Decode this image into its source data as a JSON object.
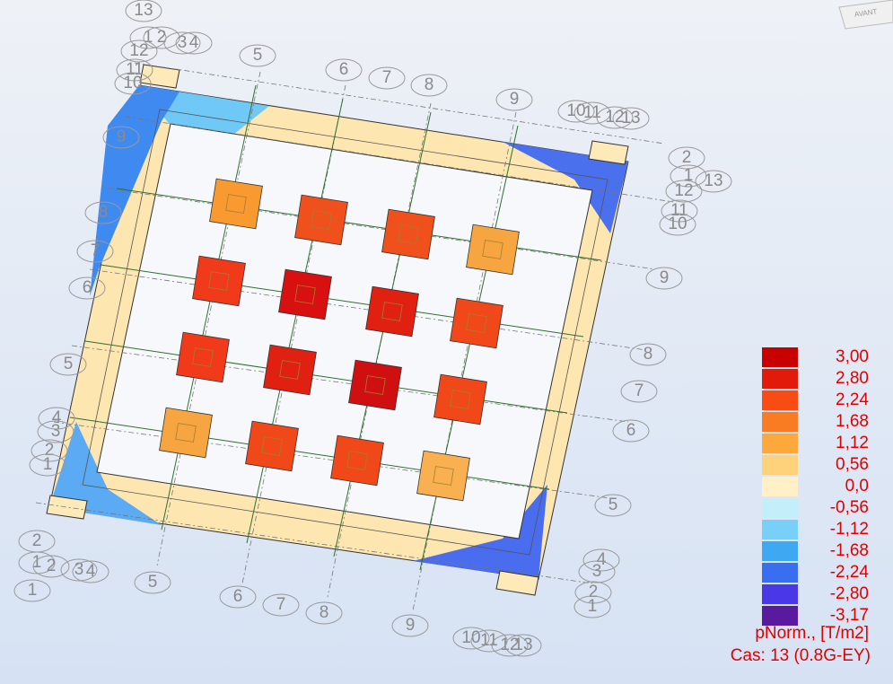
{
  "view_cube": {
    "label": "AVANT"
  },
  "legend": {
    "entries": [
      {
        "label": "3,00",
        "color": "#c80000"
      },
      {
        "label": "2,80",
        "color": "#e21a0a"
      },
      {
        "label": "2,24",
        "color": "#f84c14"
      },
      {
        "label": "1,68",
        "color": "#fa7c22"
      },
      {
        "label": "1,12",
        "color": "#fca83a"
      },
      {
        "label": "0,56",
        "color": "#fdd27a"
      },
      {
        "label": "0,0",
        "color": "#fff0c8"
      },
      {
        "label": "-0,56",
        "color": "#c4eefa"
      },
      {
        "label": "-1,12",
        "color": "#78d0f8"
      },
      {
        "label": "-1,68",
        "color": "#3ea8f2"
      },
      {
        "label": "-2,24",
        "color": "#3a6ef0"
      },
      {
        "label": "-2,80",
        "color": "#4a38e8"
      },
      {
        "label": "-3,17",
        "color": "#5a1aa0"
      }
    ],
    "quantity": "pNorm., [T/m2]",
    "case": "Cas: 13 (0.8G-EY)"
  },
  "axis_labels": [
    "13",
    "1",
    "2",
    "3",
    "4",
    "12",
    "11",
    "10",
    "9",
    "8",
    "7",
    "6",
    "5",
    "4",
    "3",
    "2",
    "1",
    "5",
    "6",
    "7",
    "8",
    "9",
    "10",
    "11",
    "12",
    "13",
    "2",
    "1",
    "13",
    "12",
    "11",
    "10",
    "9",
    "8",
    "7",
    "6",
    "5",
    "4",
    "3",
    "2",
    "1",
    "2",
    "1",
    "2",
    "3",
    "4",
    "1",
    "5",
    "6",
    "7",
    "8",
    "9",
    "10",
    "11",
    "12",
    "13"
  ],
  "pads": [
    {
      "color": "#f89a30"
    },
    {
      "color": "#f0501c"
    },
    {
      "color": "#f0501c"
    },
    {
      "color": "#f7a540"
    },
    {
      "color": "#f03a1a"
    },
    {
      "color": "#d81010"
    },
    {
      "color": "#e02010"
    },
    {
      "color": "#f04818"
    },
    {
      "color": "#f03a1a"
    },
    {
      "color": "#e02010"
    },
    {
      "color": "#d01010"
    },
    {
      "color": "#f04818"
    },
    {
      "color": "#f7a540"
    },
    {
      "color": "#f04818"
    },
    {
      "color": "#f04818"
    },
    {
      "color": "#f9b050"
    }
  ]
}
